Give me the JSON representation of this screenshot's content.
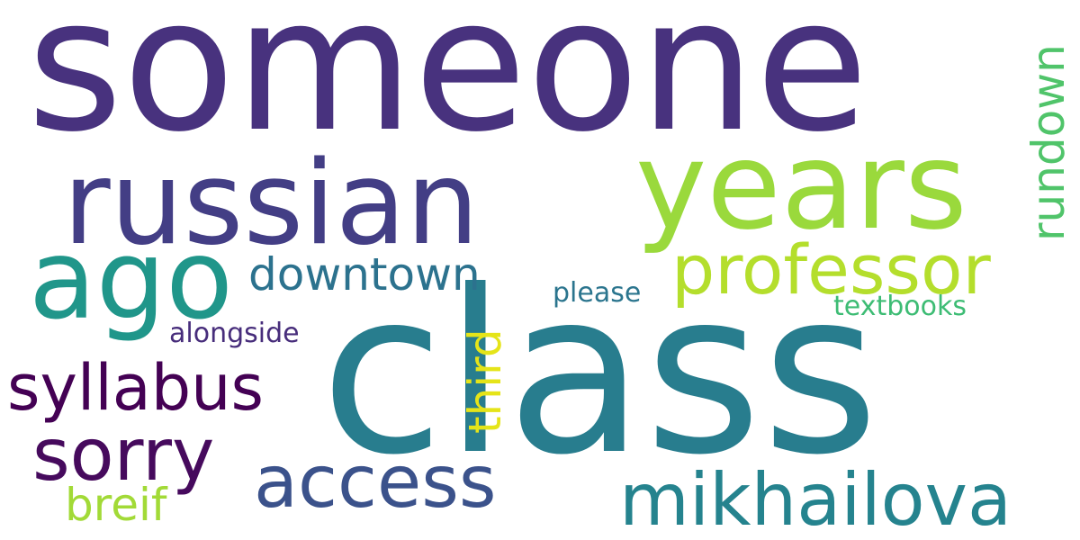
{
  "words": [
    {
      "id": "someone",
      "text": "someone",
      "color": "#48327e"
    },
    {
      "id": "class",
      "text": "class",
      "color": "#287d8e"
    },
    {
      "id": "russian",
      "text": "russian",
      "color": "#433e85"
    },
    {
      "id": "years",
      "text": "years",
      "color": "#9ad93c"
    },
    {
      "id": "ago",
      "text": "ago",
      "color": "#20968a"
    },
    {
      "id": "professor",
      "text": "professor",
      "color": "#b4de2c"
    },
    {
      "id": "rundown",
      "text": "rundown",
      "color": "#50c46a"
    },
    {
      "id": "downtown",
      "text": "downtown",
      "color": "#2c728e"
    },
    {
      "id": "please",
      "text": "please",
      "color": "#2b758e"
    },
    {
      "id": "textbooks",
      "text": "textbooks",
      "color": "#3dbc74"
    },
    {
      "id": "third",
      "text": "third",
      "color": "#e5e419"
    },
    {
      "id": "alongside",
      "text": "alongside",
      "color": "#472d7b"
    },
    {
      "id": "syllabus",
      "text": "syllabus",
      "color": "#440154"
    },
    {
      "id": "sorry",
      "text": "sorry",
      "color": "#460a5d"
    },
    {
      "id": "access",
      "text": "access",
      "color": "#3b528b"
    },
    {
      "id": "mikhailova",
      "text": "mikhailova",
      "color": "#25838e"
    },
    {
      "id": "breif",
      "text": "breif",
      "color": "#a2da37"
    }
  ]
}
